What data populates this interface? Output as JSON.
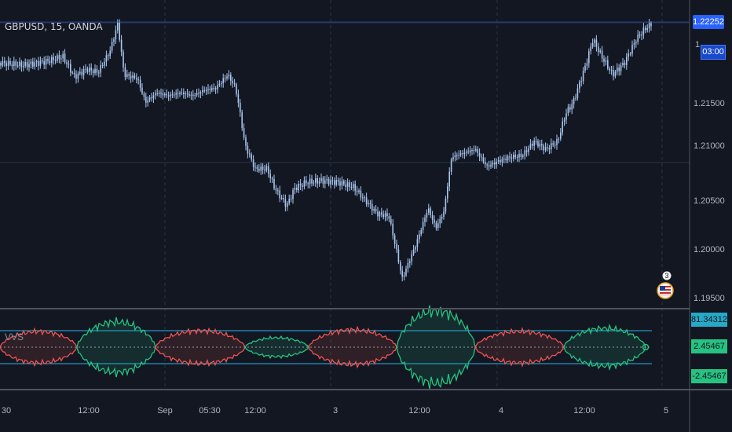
{
  "header": {
    "symbol_line": "GBPUSD, 15, OANDA"
  },
  "price_axis": {
    "current_price": "1.22252",
    "countdown": "03:00",
    "ticks": [
      "1.21500",
      "1.21000",
      "1.20500",
      "1.20000",
      "1.19500"
    ]
  },
  "indicator": {
    "label": "VVS",
    "values": [
      "81.34312",
      "2.45467",
      "-2.45467"
    ]
  },
  "time_axis": {
    "labels": [
      "30",
      "12:00",
      "Sep",
      "05:30",
      "12:00",
      "3",
      "12:00",
      "4",
      "12:00",
      "5"
    ]
  },
  "event_badge": {
    "count": "3",
    "icon": "us-flag-icon"
  },
  "colors": {
    "background": "#131722",
    "candle": "#a9c6ee",
    "grid": "#2a3447",
    "indicator_red": "#ef5350",
    "indicator_green": "#26c281",
    "band": "#2196c3",
    "price_tag": "#2962ff"
  }
}
